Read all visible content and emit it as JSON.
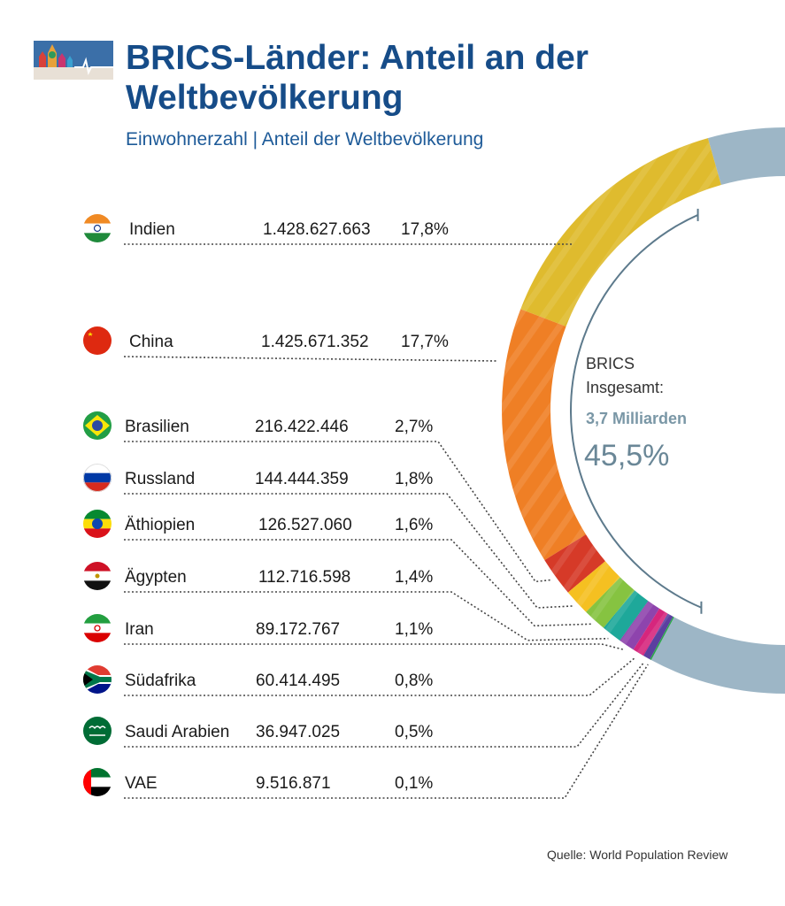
{
  "header": {
    "title_line1": "BRICS-Länder: Anteil an der",
    "title_line2": "Weltbevölkerung",
    "subtitle": "Einwohnerzahl | Anteil der Weltbevölkerung"
  },
  "source": "Quelle: World Population Review",
  "colors": {
    "title": "#164c88",
    "rest_of_world": "#9db6c6",
    "connector": "#444444"
  },
  "chart_data": {
    "type": "donut",
    "title": "BRICS-Länder: Anteil an der Weltbevölkerung",
    "center": {
      "label_line1": "BRICS",
      "label_line2": "Insgesamt:",
      "total": "3,7 Milliarden",
      "share": "45,5%"
    },
    "unit": "Einwohner / % der Weltbevölkerung",
    "rows": [
      {
        "country": "Indien",
        "flag": "india-flag",
        "population": "1.428.627.663",
        "share": "17,8%",
        "value": 17.8,
        "color": "#dfbb2e"
      },
      {
        "country": "China",
        "flag": "china-flag",
        "population": "1.425.671.352",
        "share": "17,7%",
        "value": 17.7,
        "color": "#ef7f25"
      },
      {
        "country": "Brasilien",
        "flag": "brazil-flag",
        "population": "216.422.446",
        "share": "2,7%",
        "value": 2.7,
        "color": "#d63a28"
      },
      {
        "country": "Russland",
        "flag": "russia-flag",
        "population": "144.444.359",
        "share": "1,8%",
        "value": 1.8,
        "color": "#f5c021"
      },
      {
        "country": "Äthiopien",
        "flag": "ethiopia-flag",
        "population": "126.527.060",
        "share": "1,6%",
        "value": 1.6,
        "color": "#86c341"
      },
      {
        "country": "Ägypten",
        "flag": "egypt-flag",
        "population": "112.716.598",
        "share": "1,4%",
        "value": 1.4,
        "color": "#1ea89a"
      },
      {
        "country": "Iran",
        "flag": "iran-flag",
        "population": "89.172.767",
        "share": "1,1%",
        "value": 1.1,
        "color": "#8e44ad"
      },
      {
        "country": "Südafrika",
        "flag": "south-africa-flag",
        "population": "60.414.495",
        "share": "0,8%",
        "value": 0.8,
        "color": "#d6267d"
      },
      {
        "country": "Saudi Arabien",
        "flag": "saudi-arabia-flag",
        "population": "36.947.025",
        "share": "0,5%",
        "value": 0.5,
        "color": "#5b3fa0"
      },
      {
        "country": "VAE",
        "flag": "uae-flag",
        "population": "9.516.871",
        "share": "0,1%",
        "value": 0.1,
        "color": "#2aa64a"
      }
    ]
  }
}
